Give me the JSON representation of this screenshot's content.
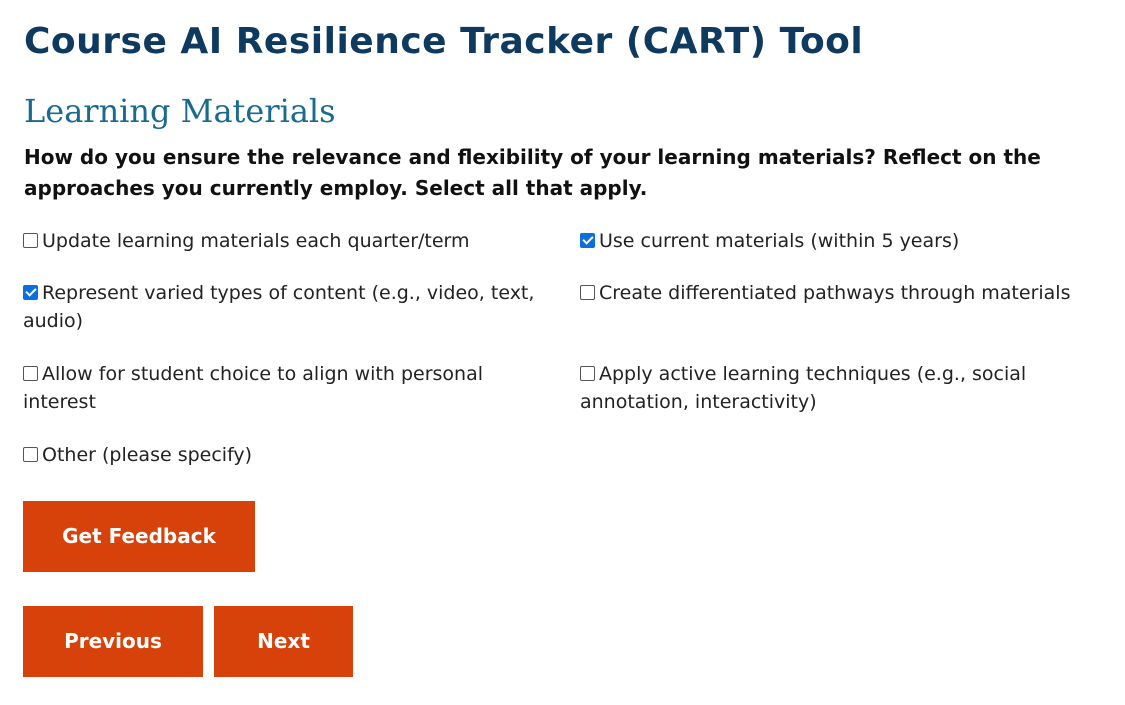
{
  "header": {
    "title": "Course AI Resilience Tracker (CART) Tool"
  },
  "section": {
    "title": "Learning Materials",
    "question": "How do you ensure the relevance and flexibility of your learning materials? Reflect on the approaches you currently employ. Select all that apply."
  },
  "options": [
    {
      "label": "Update learning materials each quarter/term",
      "checked": false
    },
    {
      "label": "Use current materials (within 5 years)",
      "checked": true
    },
    {
      "label": "Represent varied types of content (e.g., video, text, audio)",
      "checked": true
    },
    {
      "label": "Create differentiated pathways through materials",
      "checked": false
    },
    {
      "label": "Allow for student choice to align with personal interest",
      "checked": false
    },
    {
      "label": "Apply active learning techniques (e.g., social annotation, interactivity)",
      "checked": false
    },
    {
      "label": "Other (please specify)",
      "checked": false
    }
  ],
  "buttons": {
    "feedback": "Get Feedback",
    "previous": "Previous",
    "next": "Next"
  },
  "colors": {
    "title": "#0f3a5f",
    "section_title": "#196a8f",
    "button": "#d6420a",
    "checkbox_checked": "#0b6fe0"
  }
}
